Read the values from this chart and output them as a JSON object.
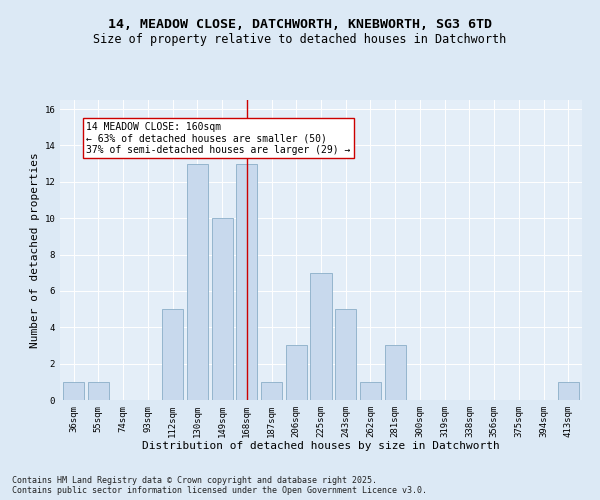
{
  "title1": "14, MEADOW CLOSE, DATCHWORTH, KNEBWORTH, SG3 6TD",
  "title2": "Size of property relative to detached houses in Datchworth",
  "xlabel": "Distribution of detached houses by size in Datchworth",
  "ylabel": "Number of detached properties",
  "categories": [
    "36sqm",
    "55sqm",
    "74sqm",
    "93sqm",
    "112sqm",
    "130sqm",
    "149sqm",
    "168sqm",
    "187sqm",
    "206sqm",
    "225sqm",
    "243sqm",
    "262sqm",
    "281sqm",
    "300sqm",
    "319sqm",
    "338sqm",
    "356sqm",
    "375sqm",
    "394sqm",
    "413sqm"
  ],
  "values": [
    1,
    1,
    0,
    0,
    5,
    13,
    10,
    13,
    1,
    3,
    7,
    5,
    1,
    3,
    0,
    0,
    0,
    0,
    0,
    0,
    1
  ],
  "bar_color": "#c8d9ed",
  "bar_edge_color": "#8aaec8",
  "highlight_bar_index": 7,
  "vline_color": "#cc0000",
  "annotation_text": "14 MEADOW CLOSE: 160sqm\n← 63% of detached houses are smaller (50)\n37% of semi-detached houses are larger (29) →",
  "annotation_box_color": "white",
  "annotation_box_edge_color": "#cc0000",
  "ylim_max": 16,
  "yticks": [
    0,
    2,
    4,
    6,
    8,
    10,
    12,
    14,
    16
  ],
  "bg_color": "#dce9f5",
  "plot_bg_color": "#e4eef8",
  "grid_color": "#ffffff",
  "footer": "Contains HM Land Registry data © Crown copyright and database right 2025.\nContains public sector information licensed under the Open Government Licence v3.0.",
  "title_fontsize": 9.5,
  "subtitle_fontsize": 8.5,
  "axis_label_fontsize": 8,
  "tick_fontsize": 6.5,
  "annotation_fontsize": 7,
  "footer_fontsize": 6
}
